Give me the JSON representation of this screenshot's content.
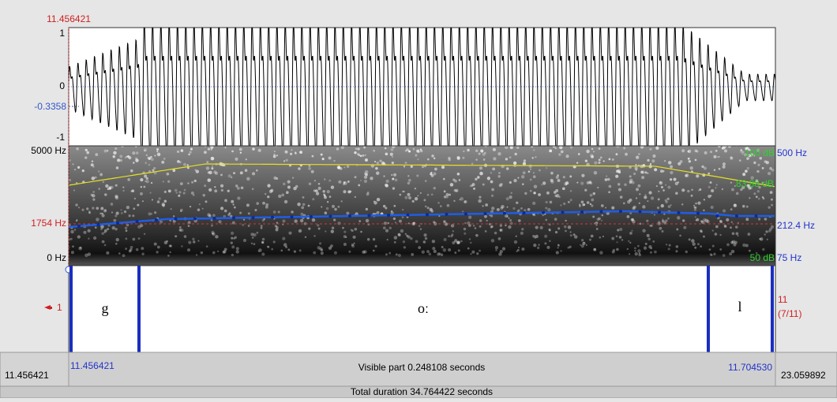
{
  "cursor_top": "11.456421",
  "waveform": {
    "max": "1",
    "zero": "0",
    "cursor_value": "-0.3358",
    "min": "-1"
  },
  "spectrogram": {
    "freq_max": "5000 Hz",
    "cursor_freq": "1754 Hz",
    "freq_min": "0 Hz",
    "intensity_max": "100 dB",
    "pitch_max": "500 Hz",
    "intensity_value": "83.88 dB",
    "pitch_value": "212.4 Hz",
    "intensity_min": "50 dB",
    "pitch_min": "75 Hz"
  },
  "tier": {
    "number": "1",
    "intervals": [
      "g",
      "oː",
      "l"
    ],
    "interval_count": "11",
    "position": "(7/11)"
  },
  "bottom": {
    "window_start": "11.456421",
    "visible_start": "11.456421",
    "visible_part": "Visible part 0.248108 seconds",
    "visible_end": "11.704530",
    "window_end": "23.059892",
    "total_duration": "Total duration 34.764422 seconds"
  }
}
